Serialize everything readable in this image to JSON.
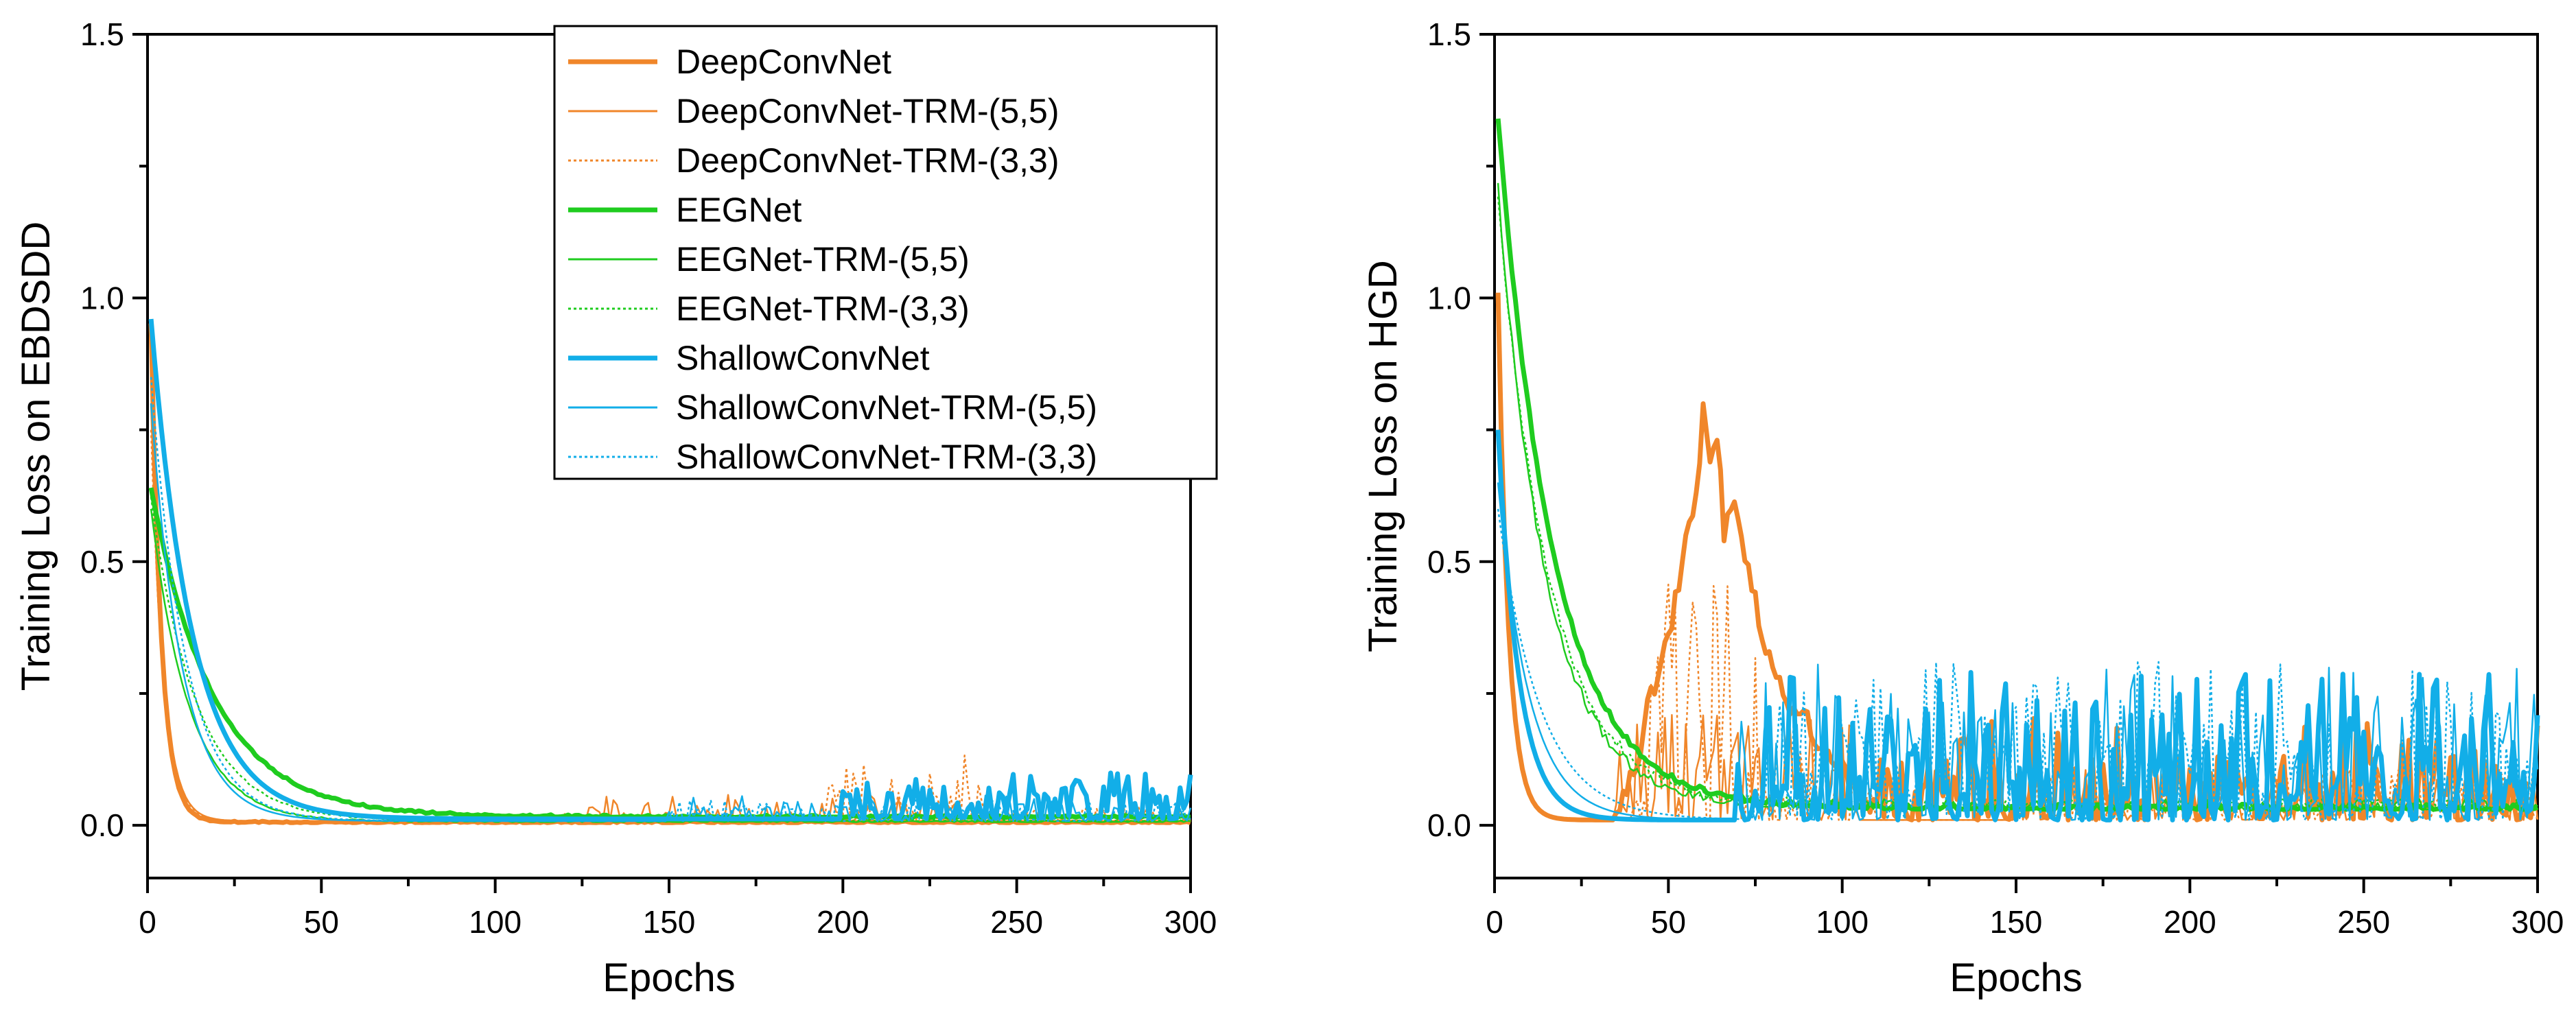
{
  "colors": {
    "deep": "#f0862a",
    "eeg": "#1fcc1f",
    "shallow": "#12aee8"
  },
  "chart_data": [
    {
      "type": "line",
      "panel": "left",
      "title": "",
      "xlabel": "Epochs",
      "ylabel": "Training Loss on EBDSDD",
      "xlim": [
        0,
        300
      ],
      "ylim": [
        -0.1,
        1.5
      ],
      "xticks": [
        0,
        50,
        100,
        150,
        200,
        250,
        300
      ],
      "xtick_labels": [
        "0",
        "50",
        "100",
        "150",
        "200",
        "250",
        "300"
      ],
      "yticks": [
        0.0,
        0.5,
        1.0,
        1.5
      ],
      "ytick_labels": [
        "0.0",
        "0.5",
        "1.0",
        "1.5"
      ],
      "legend_position": "top-right",
      "series": [
        {
          "name": "DeepConvNet",
          "color": "deep",
          "style": "thick",
          "model": "deep",
          "start": 0.95,
          "decay": 3.0,
          "floor": 0.005,
          "noise": [
            [
              0,
              300,
              0.003
            ]
          ]
        },
        {
          "name": "DeepConvNet-TRM-(5,5)",
          "color": "deep",
          "style": "thin",
          "model": "deep",
          "start": 0.8,
          "decay": 3.5,
          "floor": 0.008,
          "noise": [
            [
              120,
              240,
              0.05
            ]
          ]
        },
        {
          "name": "DeepConvNet-TRM-(3,3)",
          "color": "deep",
          "style": "dotted",
          "model": "deep",
          "start": 0.75,
          "decay": 3.5,
          "floor": 0.008,
          "noise": [
            [
              195,
              240,
              0.13
            ],
            [
              240,
              300,
              0.03
            ]
          ]
        },
        {
          "name": "EEGNet",
          "color": "eeg",
          "style": "thick",
          "model": "eeg",
          "start": 0.64,
          "decay": 18,
          "floor": 0.015,
          "noise": [
            [
              0,
              300,
              0.004
            ]
          ]
        },
        {
          "name": "EEGNet-TRM-(5,5)",
          "color": "eeg",
          "style": "thin",
          "model": "eeg",
          "start": 0.6,
          "decay": 11,
          "floor": 0.006,
          "noise": [
            [
              0,
              300,
              0.003
            ]
          ]
        },
        {
          "name": "EEGNet-TRM-(3,3)",
          "color": "eeg",
          "style": "dotted",
          "model": "eeg",
          "start": 0.62,
          "decay": 13,
          "floor": 0.008,
          "noise": [
            [
              0,
              300,
              0.003
            ]
          ]
        },
        {
          "name": "ShallowConvNet",
          "color": "shallow",
          "style": "thick",
          "model": "shallow",
          "start": 0.96,
          "decay": 12,
          "floor": 0.012,
          "noise": [
            [
              200,
              300,
              0.09
            ]
          ]
        },
        {
          "name": "ShallowConvNet-TRM-(5,5)",
          "color": "shallow",
          "style": "thin",
          "model": "shallow",
          "start": 0.8,
          "decay": 9,
          "floor": 0.008,
          "noise": [
            [
              150,
              300,
              0.05
            ]
          ]
        },
        {
          "name": "ShallowConvNet-TRM-(3,3)",
          "color": "shallow",
          "style": "dotted",
          "model": "shallow",
          "start": 0.85,
          "decay": 10,
          "floor": 0.008,
          "noise": [
            [
              150,
              300,
              0.04
            ]
          ]
        }
      ]
    },
    {
      "type": "line",
      "panel": "right",
      "title": "",
      "xlabel": "Epochs",
      "ylabel": "Training Loss on HGD",
      "xlim": [
        0,
        300
      ],
      "ylim": [
        -0.1,
        1.5
      ],
      "xticks": [
        0,
        50,
        100,
        150,
        200,
        250,
        300
      ],
      "xtick_labels": [
        "0",
        "50",
        "100",
        "150",
        "200",
        "250",
        "300"
      ],
      "yticks": [
        0.0,
        0.5,
        1.0,
        1.5
      ],
      "ytick_labels": [
        "0.0",
        "0.5",
        "1.0",
        "1.5"
      ],
      "series": [
        {
          "name": "DeepConvNet",
          "color": "deep",
          "style": "thick",
          "model": "deep",
          "start": 1.01,
          "decay": 3.0,
          "floor": 0.01,
          "noise": [
            [
              110,
              300,
              0.2
            ]
          ],
          "points": [
            [
              35,
              0.02
            ],
            [
              40,
              0.1
            ],
            [
              45,
              0.25
            ],
            [
              50,
              0.35
            ],
            [
              55,
              0.55
            ],
            [
              58,
              0.62
            ],
            [
              60,
              0.8
            ],
            [
              62,
              0.68
            ],
            [
              64,
              0.75
            ],
            [
              66,
              0.55
            ],
            [
              68,
              0.62
            ],
            [
              70,
              0.6
            ],
            [
              72,
              0.5
            ],
            [
              76,
              0.4
            ],
            [
              80,
              0.3
            ],
            [
              85,
              0.22
            ],
            [
              90,
              0.2
            ],
            [
              95,
              0.12
            ],
            [
              100,
              0.1
            ],
            [
              105,
              0.05
            ],
            [
              110,
              0.04
            ]
          ]
        },
        {
          "name": "DeepConvNet-TRM-(5,5)",
          "color": "deep",
          "style": "thin",
          "model": "deep",
          "start": 0.9,
          "decay": 3.0,
          "floor": 0.01,
          "noise": [
            [
              35,
              105,
              0.2
            ],
            [
              150,
              300,
              0.1
            ]
          ]
        },
        {
          "name": "DeepConvNet-TRM-(3,3)",
          "color": "deep",
          "style": "dotted",
          "model": "deep",
          "start": 0.9,
          "decay": 3.0,
          "floor": 0.01,
          "noise": [
            [
              40,
              75,
              0.45
            ],
            [
              75,
              110,
              0.15
            ],
            [
              150,
              300,
              0.1
            ]
          ]
        },
        {
          "name": "EEGNet",
          "color": "eeg",
          "style": "thick",
          "model": "eeg",
          "start": 1.34,
          "decay": 16,
          "floor": 0.03,
          "noise": [
            [
              0,
              300,
              0.01
            ]
          ]
        },
        {
          "name": "EEGNet-TRM-(5,5)",
          "color": "eeg",
          "style": "thin",
          "model": "eeg",
          "start": 1.2,
          "decay": 14,
          "floor": 0.03,
          "noise": [
            [
              0,
              300,
              0.02
            ]
          ]
        },
        {
          "name": "EEGNet-TRM-(3,3)",
          "color": "eeg",
          "style": "dotted",
          "model": "eeg",
          "start": 1.18,
          "decay": 15,
          "floor": 0.03,
          "noise": [
            [
              0,
              300,
              0.02
            ]
          ]
        },
        {
          "name": "ShallowConvNet",
          "color": "shallow",
          "style": "thick",
          "model": "shallow",
          "start": 0.75,
          "decay": 6,
          "floor": 0.01,
          "noise": [
            [
              70,
              300,
              0.28
            ]
          ]
        },
        {
          "name": "ShallowConvNet-TRM-(5,5)",
          "color": "shallow",
          "style": "thin",
          "model": "shallow",
          "start": 0.65,
          "decay": 9,
          "floor": 0.01,
          "noise": [
            [
              70,
              300,
              0.3
            ]
          ]
        },
        {
          "name": "ShallowConvNet-TRM-(3,3)",
          "color": "shallow",
          "style": "dotted",
          "model": "shallow",
          "start": 0.6,
          "decay": 12,
          "floor": 0.01,
          "noise": [
            [
              75,
              300,
              0.3
            ]
          ]
        }
      ]
    }
  ]
}
